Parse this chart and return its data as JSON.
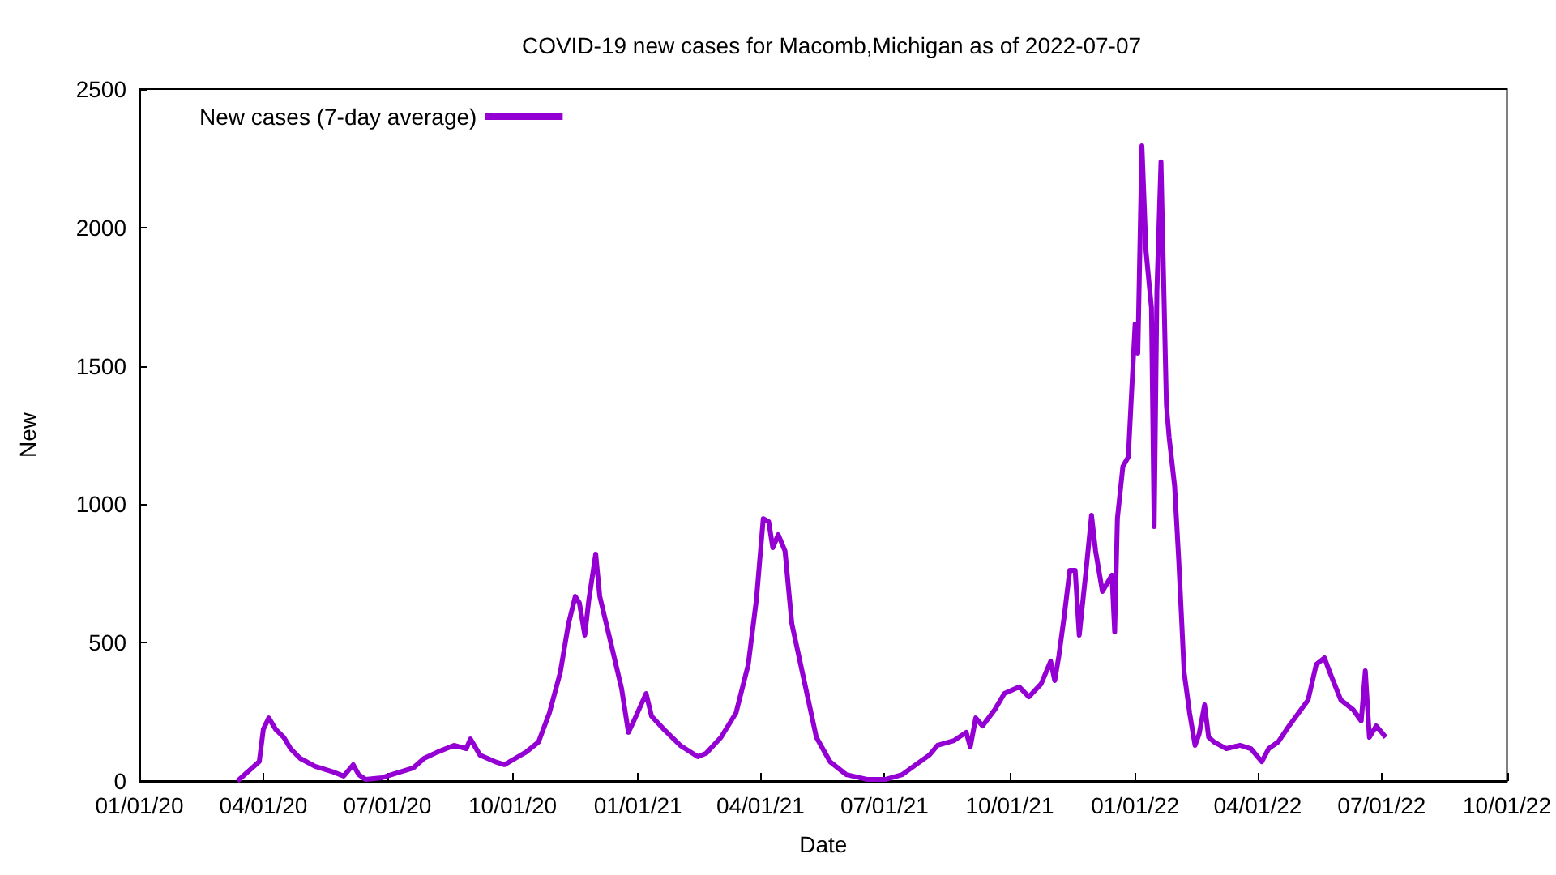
{
  "chart_data": {
    "type": "line",
    "title": "COVID-19 new cases for Macomb,Michigan as of 2022-07-07",
    "xlabel": "Date",
    "ylabel": "New",
    "xlim": [
      "2020-01-01",
      "2022-10-01"
    ],
    "xticks": [
      {
        "value": "2020-01-01",
        "label": "01/01/20"
      },
      {
        "value": "2020-04-01",
        "label": "04/01/20"
      },
      {
        "value": "2020-07-01",
        "label": "07/01/20"
      },
      {
        "value": "2020-10-01",
        "label": "10/01/20"
      },
      {
        "value": "2021-01-01",
        "label": "01/01/21"
      },
      {
        "value": "2021-04-01",
        "label": "04/01/21"
      },
      {
        "value": "2021-07-01",
        "label": "07/01/21"
      },
      {
        "value": "2021-10-01",
        "label": "10/01/21"
      },
      {
        "value": "2022-01-01",
        "label": "01/01/22"
      },
      {
        "value": "2022-04-01",
        "label": "04/01/22"
      },
      {
        "value": "2022-07-01",
        "label": "07/01/22"
      },
      {
        "value": "2022-10-01",
        "label": "10/01/22"
      }
    ],
    "ylim": [
      0,
      2500
    ],
    "yticks": [
      0,
      500,
      1000,
      1500,
      2000,
      2500
    ],
    "grid": false,
    "legend": "top left",
    "marker": "none",
    "line_style": "solid",
    "x": [
      "2020-03-13",
      "2020-03-29",
      "2020-04-01",
      "2020-04-05",
      "2020-04-10",
      "2020-04-16",
      "2020-04-21",
      "2020-04-28",
      "2020-05-09",
      "2020-05-21",
      "2020-05-30",
      "2020-06-06",
      "2020-06-10",
      "2020-06-15",
      "2020-06-27",
      "2020-07-08",
      "2020-07-20",
      "2020-07-28",
      "2020-08-07",
      "2020-08-19",
      "2020-08-28",
      "2020-08-31",
      "2020-09-07",
      "2020-09-18",
      "2020-09-25",
      "2020-10-03",
      "2020-10-11",
      "2020-10-20",
      "2020-10-28",
      "2020-11-05",
      "2020-11-11",
      "2020-11-16",
      "2020-11-19",
      "2020-11-23",
      "2020-11-26",
      "2020-12-01",
      "2020-12-04",
      "2020-12-13",
      "2020-12-20",
      "2020-12-25",
      "2020-12-29",
      "2021-01-07",
      "2021-01-11",
      "2021-01-20",
      "2021-02-01",
      "2021-02-14",
      "2021-02-20",
      "2021-03-03",
      "2021-03-14",
      "2021-03-23",
      "2021-03-29",
      "2021-04-03",
      "2021-04-07",
      "2021-04-10",
      "2021-04-14",
      "2021-04-19",
      "2021-04-24",
      "2021-05-03",
      "2021-05-12",
      "2021-05-22",
      "2021-06-03",
      "2021-06-18",
      "2021-07-02",
      "2021-07-14",
      "2021-07-24",
      "2021-08-03",
      "2021-08-09",
      "2021-08-21",
      "2021-08-30",
      "2021-09-02",
      "2021-09-06",
      "2021-09-11",
      "2021-09-20",
      "2021-09-27",
      "2021-10-08",
      "2021-10-15",
      "2021-10-24",
      "2021-10-31",
      "2021-11-03",
      "2021-11-06",
      "2021-11-10",
      "2021-11-14",
      "2021-11-18",
      "2021-11-21",
      "2021-11-26",
      "2021-11-30",
      "2021-12-03",
      "2021-12-08",
      "2021-12-15",
      "2021-12-17",
      "2021-12-19",
      "2021-12-23",
      "2021-12-27",
      "2022-01-01",
      "2022-01-03",
      "2022-01-06",
      "2022-01-09",
      "2022-01-13",
      "2022-01-15",
      "2022-01-17",
      "2022-01-20",
      "2022-01-24",
      "2022-01-26",
      "2022-01-30",
      "2022-02-02",
      "2022-02-06",
      "2022-02-10",
      "2022-02-14",
      "2022-02-17",
      "2022-02-21",
      "2022-02-24",
      "2022-02-28",
      "2022-03-09",
      "2022-03-19",
      "2022-03-27",
      "2022-04-04",
      "2022-04-09",
      "2022-04-16",
      "2022-04-24",
      "2022-05-01",
      "2022-05-08",
      "2022-05-14",
      "2022-05-20",
      "2022-05-24",
      "2022-06-01",
      "2022-06-10",
      "2022-06-16",
      "2022-06-19",
      "2022-06-22",
      "2022-06-27",
      "2022-07-01",
      "2022-07-04"
    ],
    "series": [
      {
        "name": "New cases (7-day average)",
        "color": "#9400d3",
        "values": [
          0,
          70,
          187,
          228,
          187,
          158,
          117,
          82,
          53,
          35,
          18,
          59,
          23,
          6,
          12,
          29,
          47,
          82,
          105,
          129,
          117,
          152,
          94,
          70,
          59,
          82,
          105,
          141,
          246,
          392,
          568,
          667,
          644,
          527,
          656,
          820,
          667,
          480,
          334,
          176,
          217,
          316,
          234,
          187,
          129,
          88,
          100,
          158,
          246,
          421,
          656,
          948,
          937,
          843,
          890,
          831,
          568,
          363,
          158,
          70,
          23,
          6,
          6,
          23,
          59,
          94,
          129,
          146,
          176,
          123,
          228,
          199,
          258,
          316,
          340,
          304,
          351,
          433,
          363,
          451,
          597,
          761,
          761,
          527,
          761,
          960,
          831,
          685,
          744,
          539,
          948,
          1136,
          1171,
          1651,
          1546,
          2295,
          1915,
          1710,
          919,
          1768,
          2237,
          1358,
          1241,
          1066,
          802,
          392,
          246,
          129,
          170,
          275,
          158,
          141,
          117,
          129,
          117,
          70,
          117,
          141,
          199,
          246,
          293,
          421,
          445,
          392,
          293,
          258,
          217,
          398,
          158,
          199,
          176,
          158
        ]
      }
    ]
  }
}
